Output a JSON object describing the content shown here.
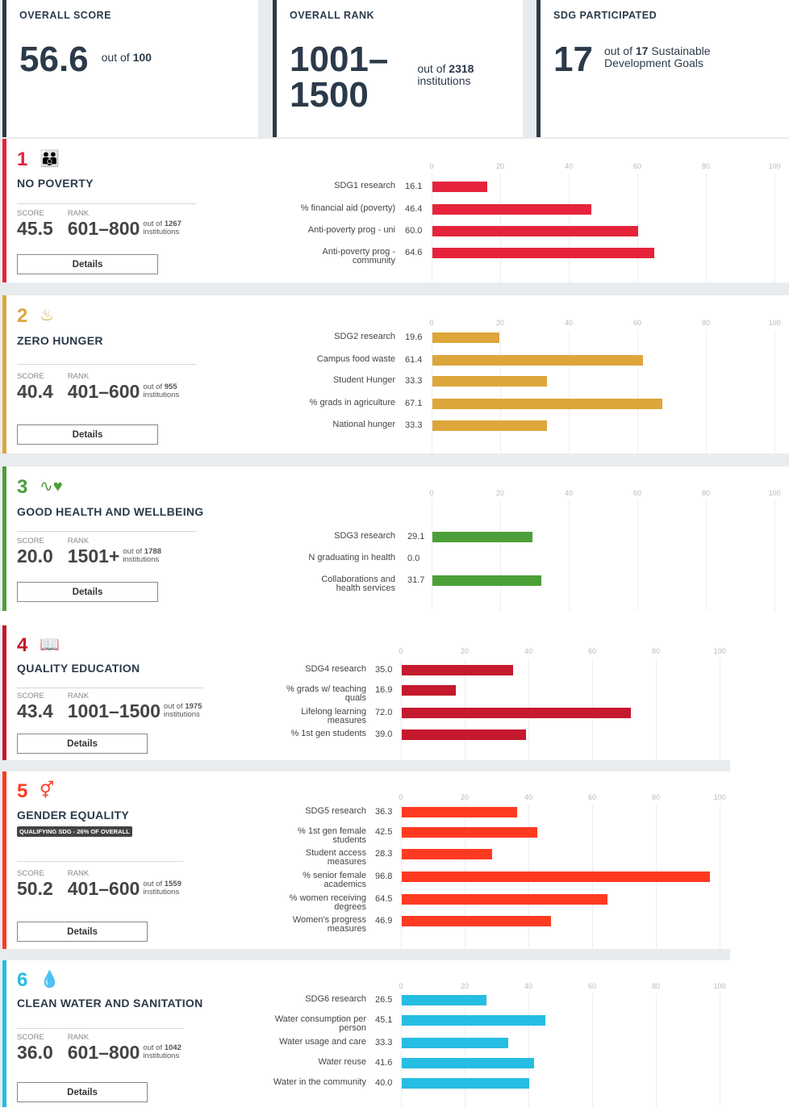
{
  "overall": {
    "score": {
      "label": "OVERALL SCORE",
      "value": "56.6",
      "out_of_prefix": "out of",
      "out_of": "100"
    },
    "rank": {
      "label": "OVERALL RANK",
      "value_line1": "1001–",
      "value_line2": "1500",
      "out_of_prefix": "out of",
      "out_of": "2318",
      "suffix": "institutions"
    },
    "sdg": {
      "label": "SDG PARTICIPATED",
      "value": "17",
      "out_of_prefix": "out of",
      "out_of": "17",
      "suffix1": "Sustainable",
      "suffix2": "Development Goals"
    }
  },
  "common": {
    "score_label": "SCORE",
    "rank_label": "RANK",
    "out_of_prefix": "out of",
    "institutions": "institutions",
    "details_label": "Details",
    "axis_ticks": [
      "0",
      "20",
      "40",
      "60",
      "80",
      "100"
    ]
  },
  "sdgs": [
    {
      "number": "1",
      "icon": "people-icon",
      "title": "NO POVERTY",
      "color": "#e5243b",
      "score": "45.5",
      "rank": "601–800",
      "out_of": "1267",
      "metrics": [
        {
          "label": "SDG1 research",
          "value": 16.1
        },
        {
          "label": "% financial aid (poverty)",
          "value": 46.4
        },
        {
          "label": "Anti-poverty prog - uni",
          "value": 60.0
        },
        {
          "label": "Anti-poverty prog -\ncommunity",
          "value": 64.6
        }
      ]
    },
    {
      "number": "2",
      "icon": "food-bowl-icon",
      "title": "ZERO HUNGER",
      "color": "#dda63a",
      "score": "40.4",
      "rank": "401–600",
      "out_of": "955",
      "metrics": [
        {
          "label": "SDG2 research",
          "value": 19.6
        },
        {
          "label": "Campus food waste",
          "value": 61.4
        },
        {
          "label": "Student Hunger",
          "value": 33.3
        },
        {
          "label": "% grads in agriculture",
          "value": 67.1
        },
        {
          "label": "National hunger",
          "value": 33.3
        }
      ]
    },
    {
      "number": "3",
      "icon": "heartbeat-icon",
      "title": "GOOD HEALTH AND WELLBEING",
      "color": "#4c9f38",
      "score": "20.0",
      "rank": "1501+",
      "out_of": "1788",
      "metrics": [
        {
          "label": "SDG3 research",
          "value": 29.1
        },
        {
          "label": "N graduating in health",
          "value": 0.0
        },
        {
          "label": "Collaborations and\nhealth services",
          "value": 31.7
        }
      ]
    },
    {
      "number": "4",
      "icon": "book-icon",
      "title": "QUALITY EDUCATION",
      "color": "#c5192d",
      "score": "43.4",
      "rank": "1001–1500",
      "out_of": "1975",
      "metrics": [
        {
          "label": "SDG4 research",
          "value": 35.0
        },
        {
          "label": "% grads w/ teaching\nquals",
          "value": 16.9
        },
        {
          "label": "Lifelong learning\nmeasures",
          "value": 72.0
        },
        {
          "label": "% 1st gen students",
          "value": 39.0
        }
      ]
    },
    {
      "number": "5",
      "icon": "gender-icon",
      "title": "GENDER EQUALITY",
      "badge": "QUALIFYING SDG - 26% OF OVERALL",
      "color": "#ff3a21",
      "score": "50.2",
      "rank": "401–600",
      "out_of": "1559",
      "metrics": [
        {
          "label": "SDG5 research",
          "value": 36.3
        },
        {
          "label": "% 1st gen female\nstudents",
          "value": 42.5
        },
        {
          "label": "Student access\nmeasures",
          "value": 28.3
        },
        {
          "label": "% senior female\nacademics",
          "value": 96.8
        },
        {
          "label": "% women receiving\ndegrees",
          "value": 64.5
        },
        {
          "label": "Women's progress\nmeasures",
          "value": 46.9
        }
      ]
    },
    {
      "number": "6",
      "icon": "water-drop-icon",
      "title": "CLEAN WATER AND SANITATION",
      "color": "#26bde2",
      "score": "36.0",
      "rank": "601–800",
      "out_of": "1042",
      "metrics": [
        {
          "label": "SDG6 research",
          "value": 26.5
        },
        {
          "label": "Water consumption per\nperson",
          "value": 45.1
        },
        {
          "label": "Water usage and care",
          "value": 33.3
        },
        {
          "label": "Water reuse",
          "value": 41.6
        },
        {
          "label": "Water in the community",
          "value": 40.0
        }
      ]
    }
  ]
}
